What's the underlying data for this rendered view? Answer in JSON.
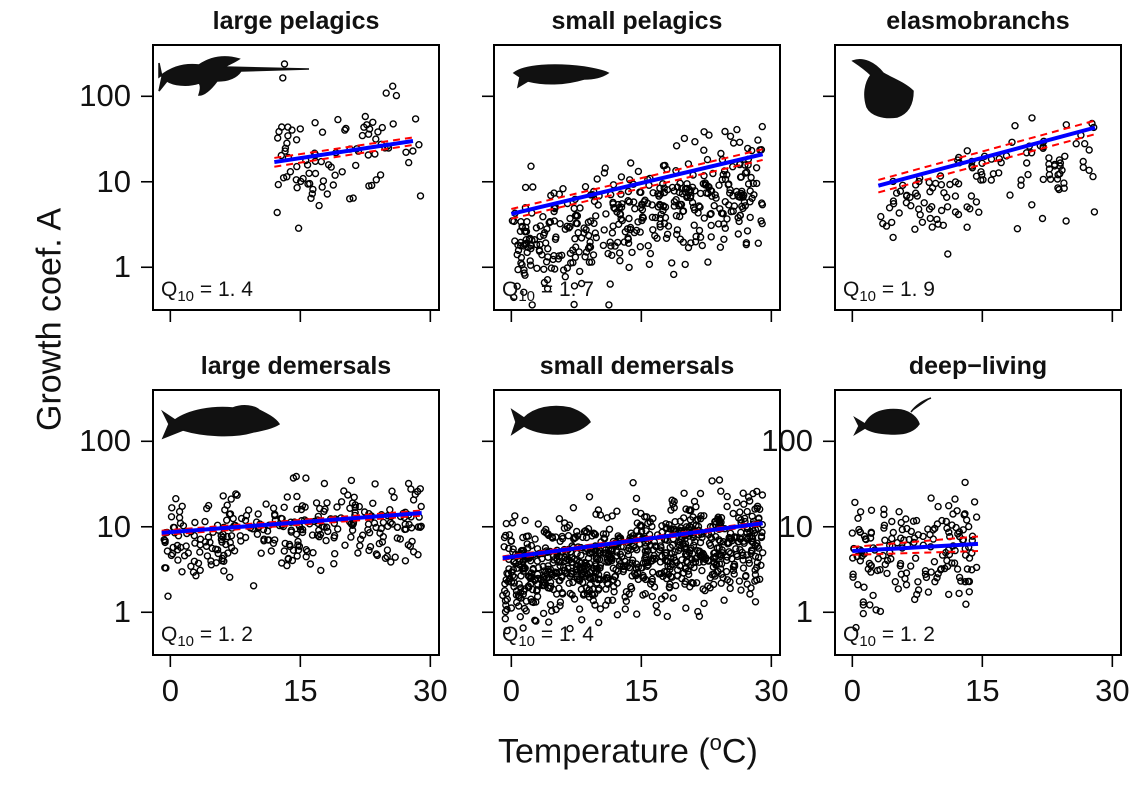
{
  "figure": {
    "ylabel": "Growth coef. A",
    "xlabel_prefix": "Temperature (",
    "xlabel_sup": "o",
    "xlabel_suffix": "C)",
    "colors": {
      "fit": "#0000ff",
      "ci": "#ff0000",
      "points": "#000000",
      "silhouette": "#111111"
    }
  },
  "chart_data": [
    {
      "type": "scatter",
      "title": "large pelagics",
      "q10_label": "Q",
      "q10_sub": "10",
      "q10_text": " = 1. 4",
      "icon": "swordfish-icon",
      "xlim": [
        -2,
        31
      ],
      "ylim_log10": [
        -0.5,
        2.6
      ],
      "y_scale": "log",
      "yticks": [
        "1",
        "10",
        "100"
      ],
      "xticks": [],
      "fit": {
        "x": [
          12,
          28
        ],
        "y": [
          17,
          30
        ]
      },
      "ci_lower": {
        "x": [
          12,
          28
        ],
        "y": [
          15,
          27
        ]
      },
      "ci_upper": {
        "x": [
          12,
          28
        ],
        "y": [
          19,
          33
        ]
      },
      "points": {
        "x_range": [
          12,
          29
        ],
        "y_log10_center": 1.35,
        "y_log10_spread": 0.32,
        "n": 90,
        "slope": 0.015,
        "seed": 11
      }
    },
    {
      "type": "scatter",
      "title": "small pelagics",
      "q10_label": "Q",
      "q10_sub": "10",
      "q10_text": " = 1. 7",
      "icon": "sardine-icon",
      "xlim": [
        -2,
        31
      ],
      "ylim_log10": [
        -0.5,
        2.6
      ],
      "y_scale": "log",
      "yticks": [],
      "xticks": [],
      "fit": {
        "x": [
          0,
          29
        ],
        "y": [
          4.2,
          21
        ]
      },
      "ci_lower": {
        "x": [
          0,
          29
        ],
        "y": [
          3.7,
          18
        ]
      },
      "ci_upper": {
        "x": [
          0,
          29
        ],
        "y": [
          4.8,
          24
        ]
      },
      "points": {
        "x_range": [
          0,
          29
        ],
        "y_log10_center": 0.62,
        "y_log10_spread": 0.3,
        "n": 430,
        "slope": 0.024,
        "seed": 23
      }
    },
    {
      "type": "scatter",
      "title": "elasmobranchs",
      "q10_label": "Q",
      "q10_sub": "10",
      "q10_text": " = 1. 9",
      "icon": "stingray-icon",
      "xlim": [
        -2,
        31
      ],
      "ylim_log10": [
        -0.5,
        2.6
      ],
      "y_scale": "log",
      "yticks": [],
      "xticks": [],
      "fit": {
        "x": [
          3,
          28
        ],
        "y": [
          9,
          43
        ]
      },
      "ci_lower": {
        "x": [
          3,
          28
        ],
        "y": [
          7.5,
          36
        ]
      },
      "ci_upper": {
        "x": [
          3,
          28
        ],
        "y": [
          10.5,
          52
        ]
      },
      "points": {
        "x_range": [
          3,
          28
        ],
        "y_log10_center": 0.95,
        "y_log10_spread": 0.27,
        "n": 130,
        "slope": 0.027,
        "seed": 37
      }
    },
    {
      "type": "scatter",
      "title": "large demersals",
      "q10_label": "Q",
      "q10_sub": "10",
      "q10_text": " = 1. 2",
      "icon": "cod-icon",
      "xlim": [
        -2,
        31
      ],
      "ylim_log10": [
        -0.5,
        2.6
      ],
      "y_scale": "log",
      "yticks": [
        "1",
        "10",
        "100"
      ],
      "xticks": [
        "0",
        "15",
        "30"
      ],
      "fit": {
        "x": [
          -1,
          29
        ],
        "y": [
          8.5,
          14.5
        ]
      },
      "ci_lower": {
        "x": [
          -1,
          29
        ],
        "y": [
          8,
          13.5
        ]
      },
      "ci_upper": {
        "x": [
          -1,
          29
        ],
        "y": [
          9,
          15.5
        ]
      },
      "points": {
        "x_range": [
          -1,
          29
        ],
        "y_log10_center": 0.93,
        "y_log10_spread": 0.25,
        "n": 300,
        "slope": 0.008,
        "seed": 41
      }
    },
    {
      "type": "scatter",
      "title": "small demersals",
      "q10_label": "Q",
      "q10_sub": "10",
      "q10_text": " = 1. 4",
      "icon": "flatfish-icon",
      "xlim": [
        -2,
        31
      ],
      "ylim_log10": [
        -0.5,
        2.6
      ],
      "y_scale": "log",
      "yticks": [],
      "xticks": [
        "0",
        "15",
        "30"
      ],
      "fit": {
        "x": [
          -1,
          29
        ],
        "y": [
          4.3,
          11
        ]
      },
      "ci_lower": {
        "x": [
          -1,
          29
        ],
        "y": [
          4.1,
          10.5
        ]
      },
      "ci_upper": {
        "x": [
          -1,
          29
        ],
        "y": [
          4.5,
          11.5
        ]
      },
      "points": {
        "x_range": [
          -1,
          29
        ],
        "y_log10_center": 0.64,
        "y_log10_spread": 0.28,
        "n": 900,
        "slope": 0.014,
        "seed": 53
      }
    },
    {
      "type": "scatter",
      "title": "deep−living",
      "q10_label": "Q",
      "q10_sub": "10",
      "q10_text": " = 1. 2",
      "icon": "anglerfish-icon",
      "xlim": [
        -2,
        31
      ],
      "ylim_log10": [
        -0.5,
        2.6
      ],
      "y_scale": "log",
      "yticks": [
        "1",
        "10",
        "100"
      ],
      "xticks": [
        "0",
        "15",
        "30"
      ],
      "fit": {
        "x": [
          0,
          14.5
        ],
        "y": [
          5.2,
          6.3
        ]
      },
      "ci_lower": {
        "x": [
          0,
          14.5
        ],
        "y": [
          4.7,
          5.2
        ]
      },
      "ci_upper": {
        "x": [
          0,
          14.5
        ],
        "y": [
          5.8,
          7.7
        ]
      },
      "points": {
        "x_range": [
          0,
          14.5
        ],
        "y_log10_center": 0.72,
        "y_log10_spread": 0.3,
        "n": 170,
        "slope": 0.004,
        "seed": 67
      }
    }
  ]
}
